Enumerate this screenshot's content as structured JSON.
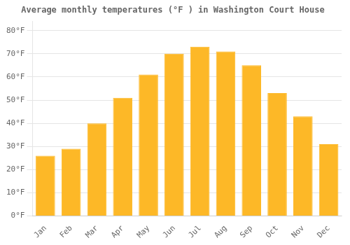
{
  "chart_data": {
    "type": "bar",
    "title": "Average monthly temperatures (°F ) in Washington Court House",
    "categories": [
      "Jan",
      "Feb",
      "Mar",
      "Apr",
      "May",
      "Jun",
      "Jul",
      "Aug",
      "Sep",
      "Oct",
      "Nov",
      "Dec"
    ],
    "values": [
      26,
      29,
      40,
      51,
      61,
      70,
      73,
      71,
      65,
      53,
      43,
      31
    ],
    "color": "#FDB827",
    "ylim": [
      0,
      84
    ],
    "yticks": [
      {
        "value": 0,
        "label": "0°F"
      },
      {
        "value": 10,
        "label": "10°F"
      },
      {
        "value": 20,
        "label": "20°F"
      },
      {
        "value": 30,
        "label": "30°F"
      },
      {
        "value": 40,
        "label": "40°F"
      },
      {
        "value": 50,
        "label": "50°F"
      },
      {
        "value": 60,
        "label": "60°F"
      },
      {
        "value": 70,
        "label": "70°F"
      },
      {
        "value": 80,
        "label": "80°F"
      }
    ],
    "grid": true
  }
}
